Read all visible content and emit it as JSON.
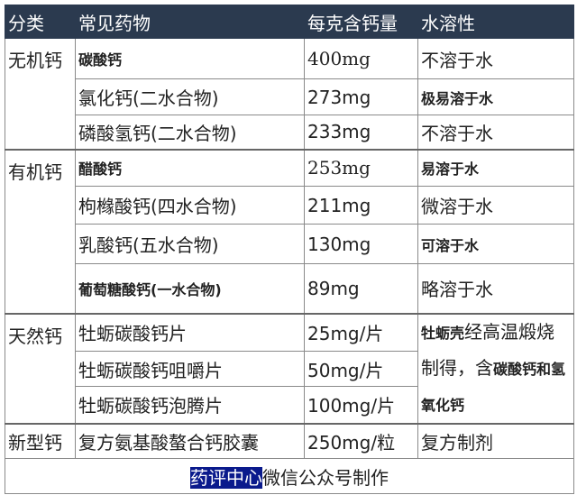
{
  "header": [
    "分类",
    "常见药物",
    "每克含钙量",
    "水溶性"
  ],
  "groups": [
    {
      "category": "无机钙",
      "rows": [
        {
          "drug": "碳酸钙",
          "calcium": "400mg",
          "solubility": "不溶于水"
        },
        {
          "drug": "氯化钙(二水合物)",
          "calcium": "273mg",
          "solubility": "极易溶于水"
        },
        {
          "drug": "磷酸氢钙(二水合物)",
          "calcium": "233mg",
          "solubility": "不溶于水"
        }
      ]
    },
    {
      "category": "有机钙",
      "rows": [
        {
          "drug": "醋酸钙",
          "calcium": "253mg",
          "solubility": "易溶于水"
        },
        {
          "drug": "枸橼酸钙(四水合物)",
          "calcium": "211mg",
          "solubility": "微溶于水"
        },
        {
          "drug": "乳酸钙(五水合物)",
          "calcium": "130mg",
          "solubility": "可溶于水"
        },
        {
          "drug": "葡萄糖酸钙(一水合物)",
          "calcium": "89mg",
          "solubility": "略溶于水"
        }
      ]
    },
    {
      "category": "天然钙",
      "rows": [
        {
          "drug": "牡蛎碳酸钙片",
          "calcium": "25mg/片"
        },
        {
          "drug": "牡蛎碳酸钙咀嚼片",
          "calcium": "50mg/片"
        },
        {
          "drug": "牡蛎碳酸钙泡腾片",
          "calcium": "100mg/片"
        }
      ],
      "solubility_parts": [
        "牡蛎壳",
        "经高温煅烧制得，含",
        "碳酸钙和氢氧化钙"
      ]
    },
    {
      "category": "新型钙",
      "rows": [
        {
          "drug": "复方氨基酸螯合钙胶囊",
          "calcium": "250mg/粒",
          "solubility": "复方制剂"
        }
      ]
    }
  ],
  "footer": {
    "highlight": "药评中心",
    "rest": "微信公众号制作"
  },
  "colors": {
    "header_bg": "#2b3a4f",
    "highlight_bg": "#0a1a8c"
  }
}
